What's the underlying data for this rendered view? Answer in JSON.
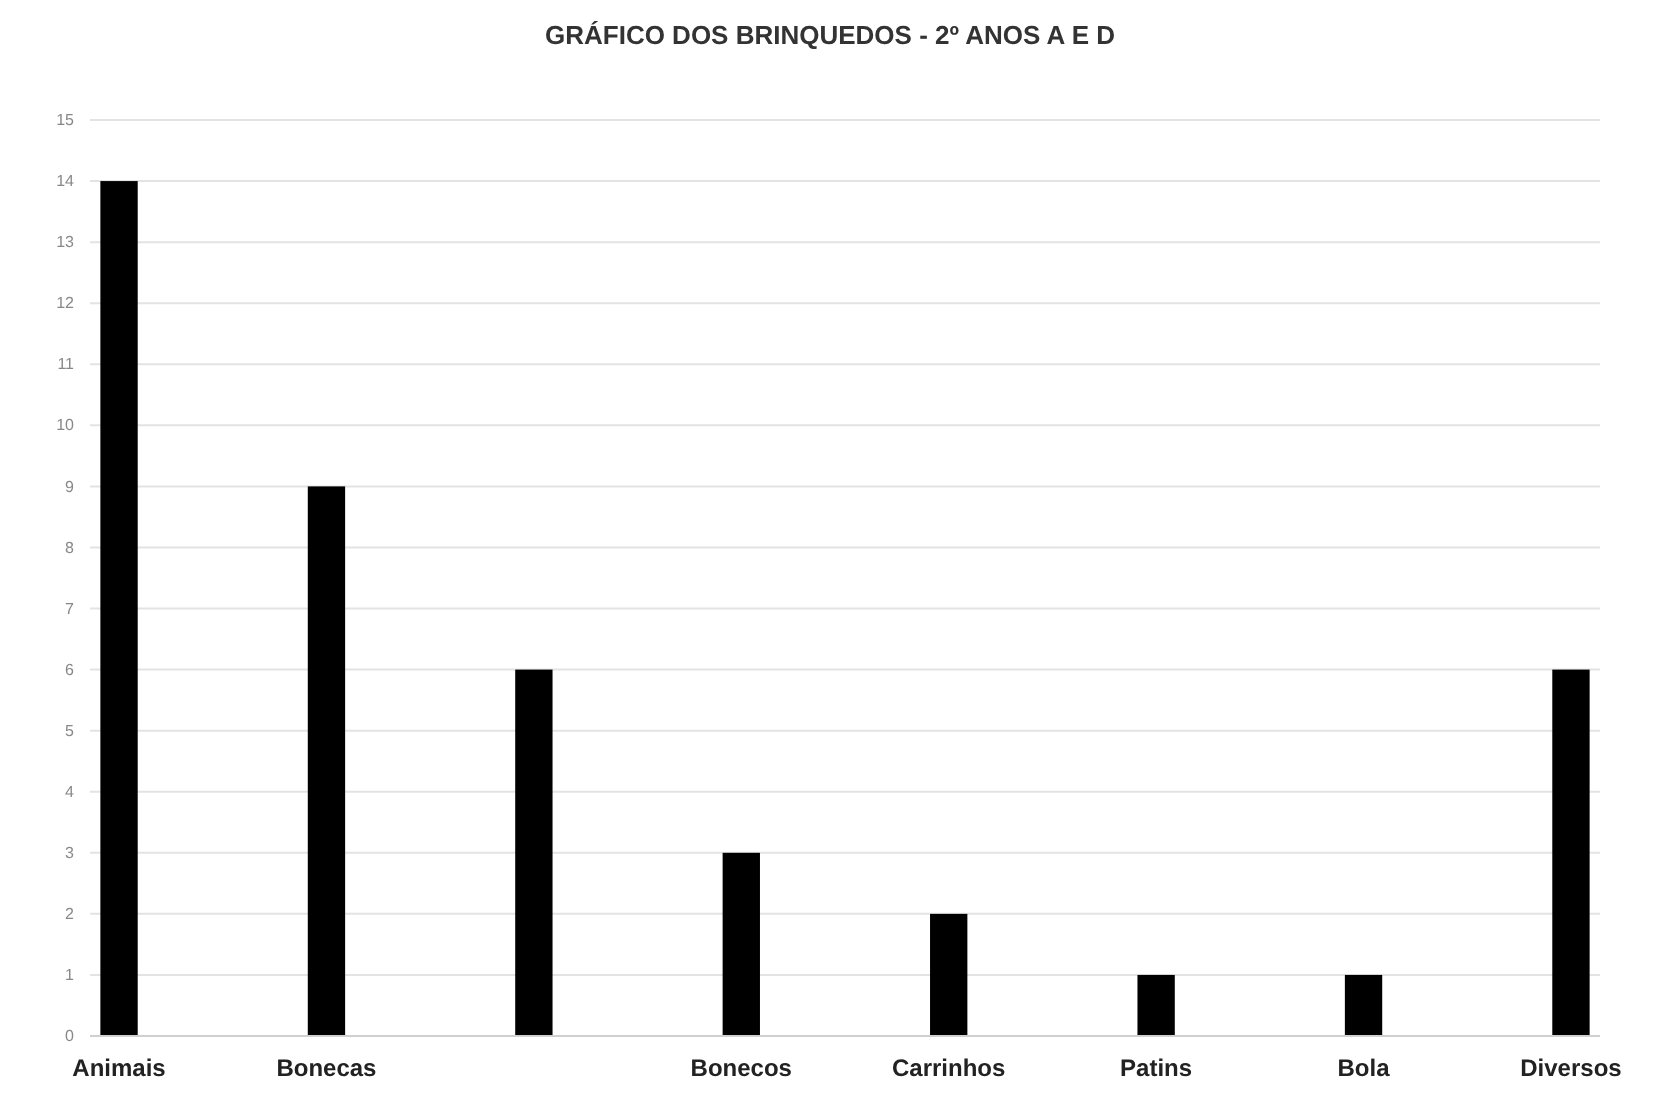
{
  "chart_data": {
    "type": "bar",
    "title": "GRÁFICO DOS BRINQUEDOS - 2º ANOS A E D",
    "categories": [
      "Animais",
      "Bonecas",
      null,
      "Bonecos",
      "Carrinhos",
      "Patins",
      "Bola",
      "Diversos"
    ],
    "values": [
      14,
      9,
      6,
      3,
      2,
      1,
      1,
      6
    ],
    "color": "#000000",
    "ylim": [
      0,
      15
    ],
    "yticks": [
      0,
      1,
      2,
      3,
      4,
      5,
      6,
      7,
      8,
      9,
      10,
      11,
      12,
      13,
      14,
      15
    ],
    "grid": "y"
  }
}
